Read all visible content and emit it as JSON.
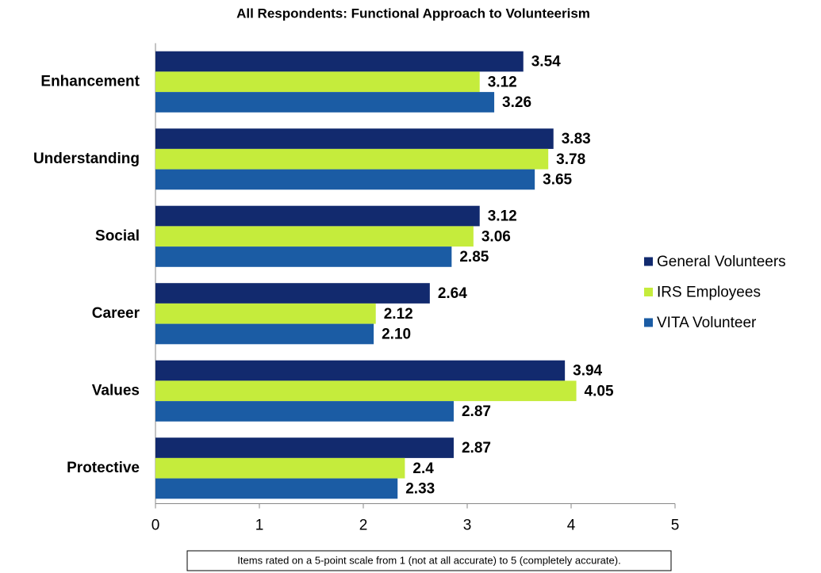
{
  "chart_data": {
    "type": "bar",
    "orientation": "horizontal",
    "title": "All Respondents: Functional Approach to Volunteerism",
    "categories": [
      "Enhancement",
      "Understanding",
      "Social",
      "Career",
      "Values",
      "Protective"
    ],
    "series": [
      {
        "name": "General Volunteers",
        "color": "#122a6e",
        "values": [
          3.54,
          3.83,
          3.12,
          2.64,
          3.94,
          2.87
        ],
        "value_labels": [
          "3.54",
          "3.83",
          "3.12",
          "2.64",
          "3.94",
          "2.87"
        ]
      },
      {
        "name": "IRS Employees",
        "color": "#c5ec3c",
        "values": [
          3.12,
          3.78,
          3.06,
          2.12,
          4.05,
          2.4
        ],
        "value_labels": [
          "3.12",
          "3.78",
          "3.06",
          "2.12",
          "4.05",
          "2.4"
        ]
      },
      {
        "name": "VITA Volunteer",
        "color": "#1b5ca4",
        "values": [
          3.26,
          3.65,
          2.85,
          2.1,
          2.87,
          2.33
        ],
        "value_labels": [
          "3.26",
          "3.65",
          "2.85",
          "2.10",
          "2.87",
          "2.33"
        ]
      }
    ],
    "xlim": [
      0,
      5
    ],
    "xticks": [
      0,
      1,
      2,
      3,
      4,
      5
    ],
    "legend": "right",
    "annotation": "Items rated on a 5-point scale from 1 (not at all accurate) to 5 (completely accurate)."
  }
}
